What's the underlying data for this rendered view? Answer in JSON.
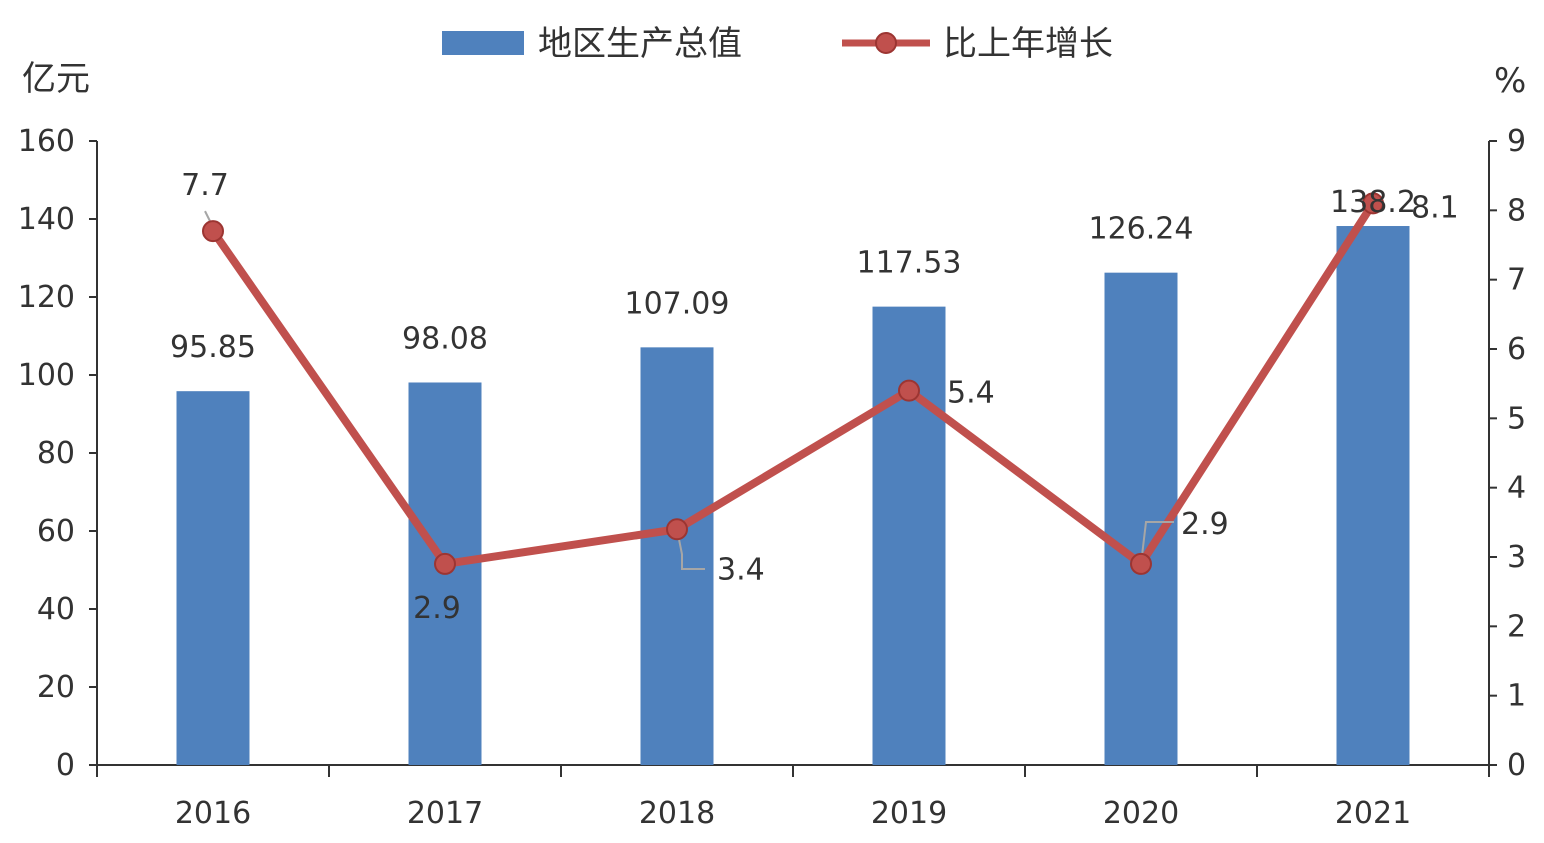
{
  "chart_data": {
    "type": "bar",
    "categories": [
      "2016",
      "2017",
      "2018",
      "2019",
      "2020",
      "2021"
    ],
    "series": [
      {
        "name": "地区生产总值",
        "type": "bar",
        "axis": "left",
        "color": "#4F81BD",
        "values": [
          95.85,
          98.08,
          107.09,
          117.53,
          126.24,
          138.2
        ],
        "labels": [
          "95.85",
          "98.08",
          "107.09",
          "117.53",
          "126.24",
          "138.2"
        ]
      },
      {
        "name": "比上年增长",
        "type": "line",
        "axis": "right",
        "color": "#C0504D",
        "values": [
          7.7,
          2.9,
          3.4,
          5.4,
          2.9,
          8.1
        ],
        "labels": [
          "7.7",
          "2.9",
          "3.4",
          "5.4",
          "2.9",
          "8.1"
        ]
      }
    ],
    "ylabel": "亿元",
    "y2label": "%",
    "ylim": [
      0,
      160
    ],
    "y2lim": [
      0,
      9
    ],
    "yticks": [
      "0",
      "20",
      "40",
      "60",
      "80",
      "100",
      "120",
      "140",
      "160"
    ],
    "y2ticks": [
      "0",
      "1",
      "2",
      "3",
      "4",
      "5",
      "6",
      "7",
      "8",
      "9"
    ],
    "grid": false,
    "legend_position": "top"
  }
}
